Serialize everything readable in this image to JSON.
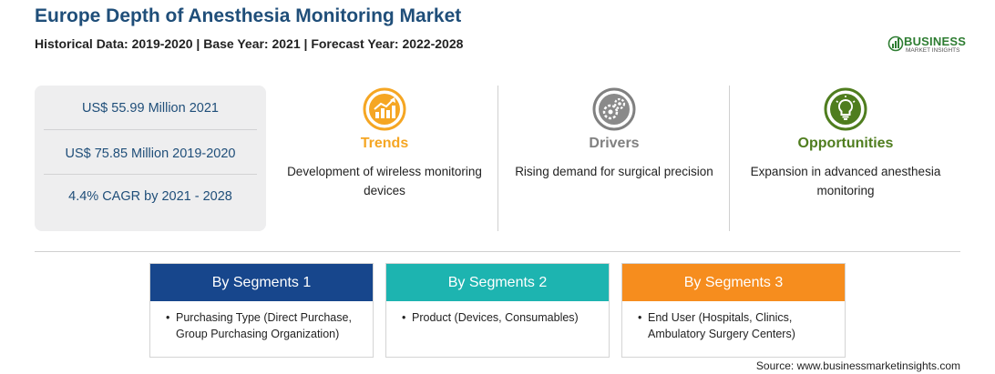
{
  "header": {
    "title": "Europe Depth of Anesthesia Monitoring Market",
    "subtitle": "Historical Data: 2019-2020 | Base Year: 2021 | Forecast Year: 2022-2028"
  },
  "logo": {
    "name": "BUSINESS",
    "tagline": "MARKET INSIGHTS",
    "color": "#2e7d32"
  },
  "stats": [
    "US$ 55.99 Million 2021",
    "US$ 75.85 Million 2019-2020",
    "4.4% CAGR by 2021 - 2028"
  ],
  "cards": [
    {
      "title": "Trends",
      "text": "Development of wireless monitoring devices",
      "color": "#f5a623",
      "icon": "growth-chart-icon"
    },
    {
      "title": "Drivers",
      "text": "Rising demand for surgical precision",
      "color": "#808080",
      "icon": "gears-icon"
    },
    {
      "title": "Opportunities",
      "text": "Expansion in advanced anesthesia monitoring",
      "color": "#4f7d1e",
      "icon": "lightbulb-icon"
    }
  ],
  "segments": [
    {
      "title": "By Segments 1",
      "color": "#17468c",
      "bullet": "•",
      "text": "Purchasing Type (Direct Purchase, Group Purchasing Organization)"
    },
    {
      "title": "By Segments 2",
      "color": "#1db4b0",
      "bullet": "•",
      "text": "Product (Devices, Consumables)"
    },
    {
      "title": "By Segments 3",
      "color": "#f68d1e",
      "bullet": "•",
      "text": "End User (Hospitals, Clinics, Ambulatory Surgery Centers)"
    }
  ],
  "source": "Source: www.businessmarketinsights.com"
}
